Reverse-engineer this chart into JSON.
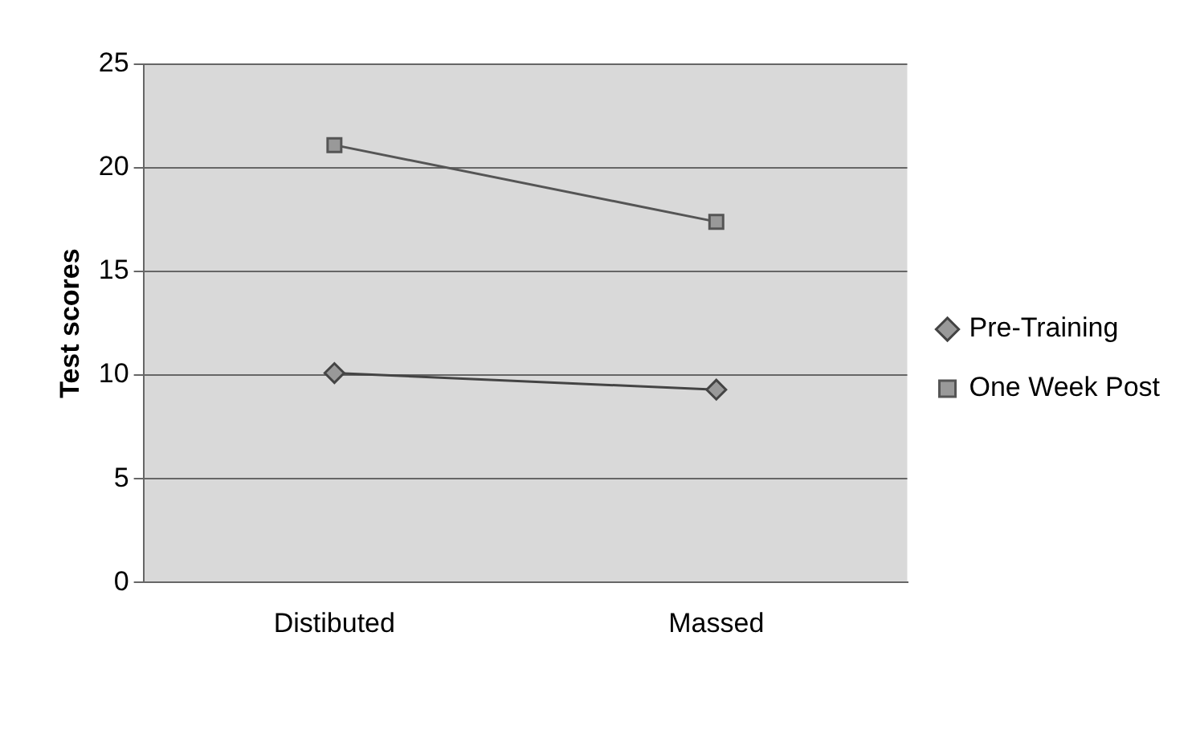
{
  "chart_data": {
    "type": "line",
    "ylabel": "Test scores",
    "categories": [
      "Distibuted",
      "Massed"
    ],
    "series": [
      {
        "name": "Pre-Training",
        "color": "#444444",
        "values": [
          10.1,
          9.3
        ],
        "marker": "diamond"
      },
      {
        "name": "One Week Post",
        "color": "#555555",
        "values": [
          21.1,
          17.4
        ],
        "marker": "square"
      }
    ],
    "ylim": [
      0,
      25
    ],
    "yticks": [
      0,
      5,
      10,
      15,
      20,
      25
    ],
    "grid": "y",
    "legend": "right",
    "line_style": "solid"
  }
}
